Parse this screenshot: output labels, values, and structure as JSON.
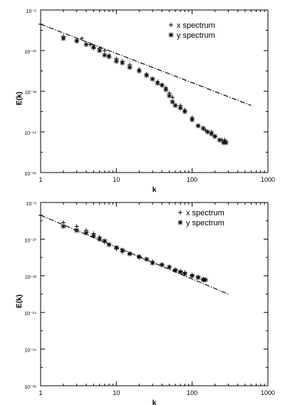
{
  "chart_data": [
    {
      "type": "scatter",
      "xlabel": "k",
      "ylabel": "E(k)",
      "xscale": "log",
      "yscale": "log",
      "xlim": [
        1,
        1000
      ],
      "ylim": [
        1e-16,
        1e-08
      ],
      "xticks": [
        "1",
        "10",
        "100",
        "1000"
      ],
      "yticks": [
        "10⁻⁸",
        "10⁻¹⁰",
        "10⁻¹²",
        "10⁻¹⁴",
        "10⁻¹⁶"
      ],
      "legend_position": "top-right",
      "series": [
        {
          "name": "x spectrum",
          "marker": "plus",
          "points": [
            [
              1.0,
              2e-09
            ],
            [
              2.0,
              5e-10
            ],
            [
              3.0,
              3e-10
            ],
            [
              3.5,
              4e-10
            ],
            [
              4.5,
              2e-10
            ],
            [
              5.0,
              1.3e-10
            ],
            [
              6.0,
              1.3e-10
            ],
            [
              7.0,
              1e-10
            ],
            [
              8.0,
              6e-11
            ],
            [
              10.0,
              4e-11
            ],
            [
              12.0,
              3e-11
            ],
            [
              15.0,
              2e-11
            ],
            [
              20.0,
              1.2e-11
            ],
            [
              25.0,
              7e-12
            ],
            [
              30.0,
              4e-12
            ],
            [
              35.0,
              3e-12
            ],
            [
              40.0,
              2e-12
            ],
            [
              45.0,
              1.5e-12
            ],
            [
              50.0,
              8e-13
            ],
            [
              55.0,
              5e-13
            ],
            [
              60.0,
              2e-13
            ],
            [
              70.0,
              2e-13
            ],
            [
              80.0,
              1.2e-13
            ],
            [
              100.0,
              5e-14
            ],
            [
              120.0,
              2e-14
            ],
            [
              150.0,
              1.2e-14
            ],
            [
              180.0,
              1e-14
            ],
            [
              200.0,
              6e-15
            ],
            [
              250.0,
              4e-15
            ],
            [
              270.0,
              4e-15
            ]
          ]
        },
        {
          "name": "y spectrum",
          "marker": "star",
          "points": [
            [
              2.0,
              4e-10
            ],
            [
              3.0,
              3e-10
            ],
            [
              4.0,
              2e-10
            ],
            [
              5.0,
              1.5e-10
            ],
            [
              6.0,
              1e-10
            ],
            [
              7.0,
              6e-11
            ],
            [
              8.0,
              5e-11
            ],
            [
              10.0,
              3e-11
            ],
            [
              12.0,
              2.5e-11
            ],
            [
              15.0,
              1.5e-11
            ],
            [
              20.0,
              1e-11
            ],
            [
              25.0,
              6e-12
            ],
            [
              30.0,
              4e-12
            ],
            [
              35.0,
              2.5e-12
            ],
            [
              40.0,
              2e-12
            ],
            [
              45.0,
              1.2e-12
            ],
            [
              50.0,
              6e-13
            ],
            [
              55.0,
              3e-13
            ],
            [
              60.0,
              2e-13
            ],
            [
              70.0,
              1.5e-13
            ],
            [
              80.0,
              1e-13
            ],
            [
              100.0,
              4e-14
            ],
            [
              120.0,
              2e-14
            ],
            [
              140.0,
              1.5e-14
            ],
            [
              160.0,
              1e-14
            ],
            [
              180.0,
              8e-15
            ],
            [
              200.0,
              6e-15
            ],
            [
              230.0,
              4e-15
            ],
            [
              260.0,
              3e-15
            ],
            [
              280.0,
              3e-15
            ]
          ]
        }
      ],
      "fit_line": {
        "style": "dash-dot",
        "points": [
          [
            1.0,
            2e-09
          ],
          [
            600.0,
            2e-13
          ]
        ]
      }
    },
    {
      "type": "scatter",
      "xlabel": "k",
      "ylabel": "E(k)",
      "xscale": "log",
      "yscale": "log",
      "xlim": [
        1,
        1000
      ],
      "ylim": [
        1e-18,
        1e-08
      ],
      "xticks": [
        "1",
        "10",
        "100",
        "1000"
      ],
      "yticks": [
        "10⁻⁸",
        "10⁻¹⁰",
        "10⁻¹²",
        "10⁻¹⁴",
        "10⁻¹⁶",
        "10⁻¹⁸"
      ],
      "legend_position": "top-right",
      "series": [
        {
          "name": "x spectrum",
          "marker": "plus",
          "points": [
            [
              1.0,
              2e-09
            ],
            [
              2.0,
              8e-10
            ],
            [
              3.0,
              5e-10
            ],
            [
              4.0,
              3e-10
            ],
            [
              5.0,
              2e-10
            ],
            [
              6.0,
              1.3e-10
            ],
            [
              7.0,
              7e-11
            ],
            [
              8.0,
              5e-11
            ],
            [
              10.0,
              3e-11
            ],
            [
              12.0,
              2e-11
            ],
            [
              15.0,
              1.5e-11
            ],
            [
              20.0,
              1e-11
            ],
            [
              25.0,
              8e-12
            ],
            [
              30.0,
              6e-12
            ],
            [
              40.0,
              4e-12
            ],
            [
              50.0,
              3e-12
            ],
            [
              60.0,
              2.2e-12
            ],
            [
              70.0,
              1.8e-12
            ],
            [
              80.0,
              1.5e-12
            ],
            [
              100.0,
              1.1e-12
            ],
            [
              120.0,
              9e-13
            ],
            [
              140.0,
              7e-13
            ]
          ]
        },
        {
          "name": "y spectrum",
          "marker": "star",
          "points": [
            [
              2.0,
              5e-10
            ],
            [
              3.0,
              3e-10
            ],
            [
              4.0,
              2.2e-10
            ],
            [
              5.0,
              1.5e-10
            ],
            [
              6.0,
              1e-10
            ],
            [
              7.0,
              8e-11
            ],
            [
              8.0,
              5e-11
            ],
            [
              10.0,
              3.5e-11
            ],
            [
              12.0,
              2.5e-11
            ],
            [
              15.0,
              1.6e-11
            ],
            [
              20.0,
              1.1e-11
            ],
            [
              25.0,
              8e-12
            ],
            [
              30.0,
              5e-12
            ],
            [
              40.0,
              4e-12
            ],
            [
              50.0,
              3e-12
            ],
            [
              60.0,
              2e-12
            ],
            [
              70.0,
              1.6e-12
            ],
            [
              80.0,
              1.3e-12
            ],
            [
              100.0,
              1e-12
            ],
            [
              120.0,
              8e-13
            ],
            [
              140.0,
              6e-13
            ],
            [
              150.0,
              6e-13
            ]
          ]
        }
      ],
      "fit_line": {
        "style": "dash-dot",
        "points": [
          [
            1.0,
            2e-09
          ],
          [
            300.0,
            1e-13
          ]
        ]
      }
    }
  ]
}
